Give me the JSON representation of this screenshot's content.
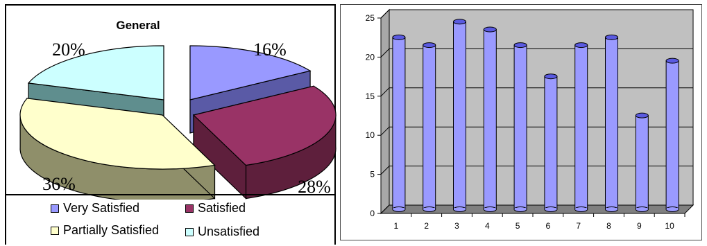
{
  "chart_data": [
    {
      "type": "pie",
      "title": "General",
      "categories": [
        "Very Satisfied",
        "Satisfied",
        "Partially Satisfied",
        "Unsatisfied"
      ],
      "values": [
        16,
        28,
        36,
        20
      ],
      "value_labels": [
        "16%",
        "28%",
        "36%",
        "20%"
      ],
      "legend": "bottom",
      "colors": [
        "#9999ff",
        "#993366",
        "#ffffcc",
        "#ccffff"
      ],
      "side_colors": [
        "#5a5aa6",
        "#5e1f3c",
        "#8f8f6a",
        "#5f8e8e"
      ]
    },
    {
      "type": "bar",
      "categories": [
        "1",
        "2",
        "3",
        "4",
        "5",
        "6",
        "7",
        "8",
        "9",
        "10"
      ],
      "values": [
        22,
        21,
        24,
        23,
        21,
        17,
        21,
        22,
        12,
        19
      ],
      "ylim": [
        0,
        25
      ],
      "yticks": [
        "0",
        "5",
        "10",
        "15",
        "20",
        "25"
      ],
      "grid": true,
      "colors": {
        "bar": "#9a9aff",
        "bar_dark": "#5a5ae0",
        "wall": "#c0c0c0",
        "floor": "#808080"
      }
    }
  ]
}
